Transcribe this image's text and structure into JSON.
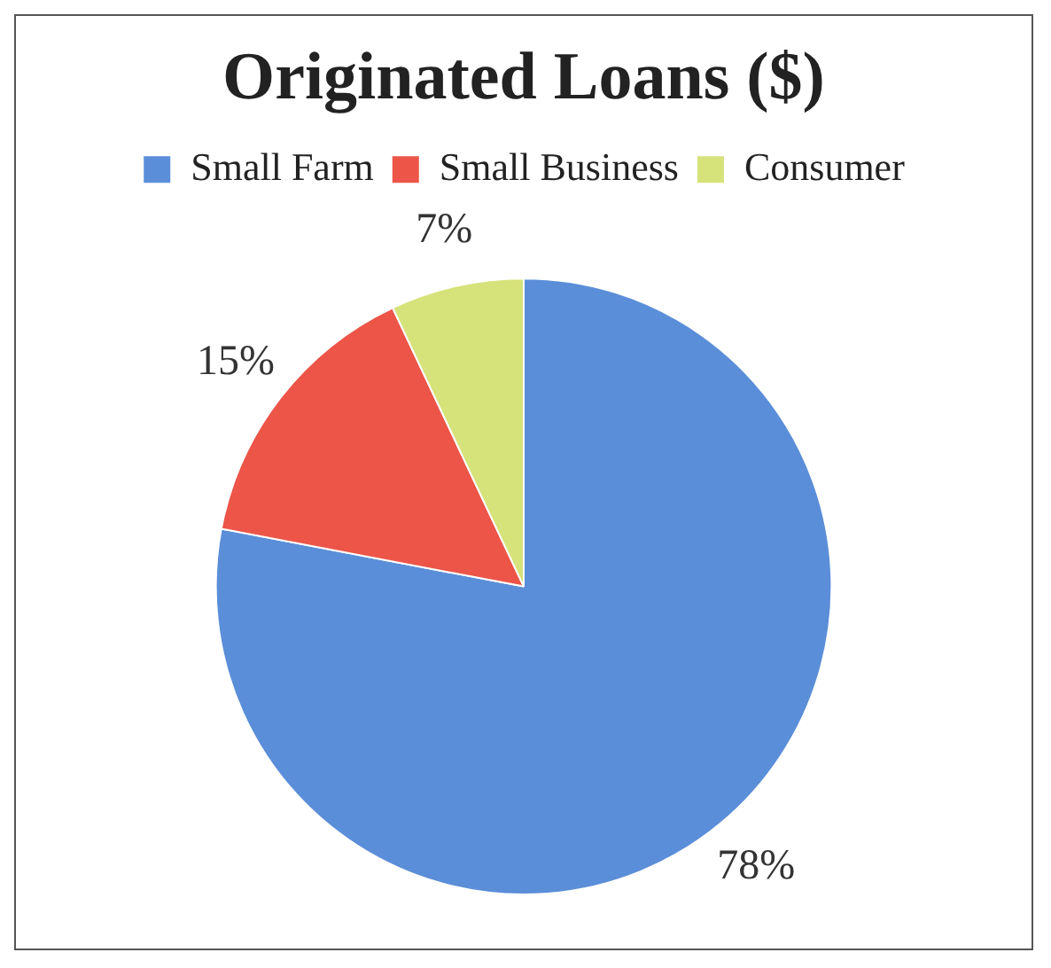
{
  "chart_data": {
    "type": "pie",
    "title": "Originated Loans ($)",
    "categories": [
      "Small Farm",
      "Small Business",
      "Consumer"
    ],
    "values": [
      78,
      15,
      7
    ],
    "colors": [
      "#5b8ed8",
      "#ec5548",
      "#d6e27a"
    ],
    "value_labels": [
      "78%",
      "15%",
      "7%"
    ],
    "legend": "top"
  }
}
